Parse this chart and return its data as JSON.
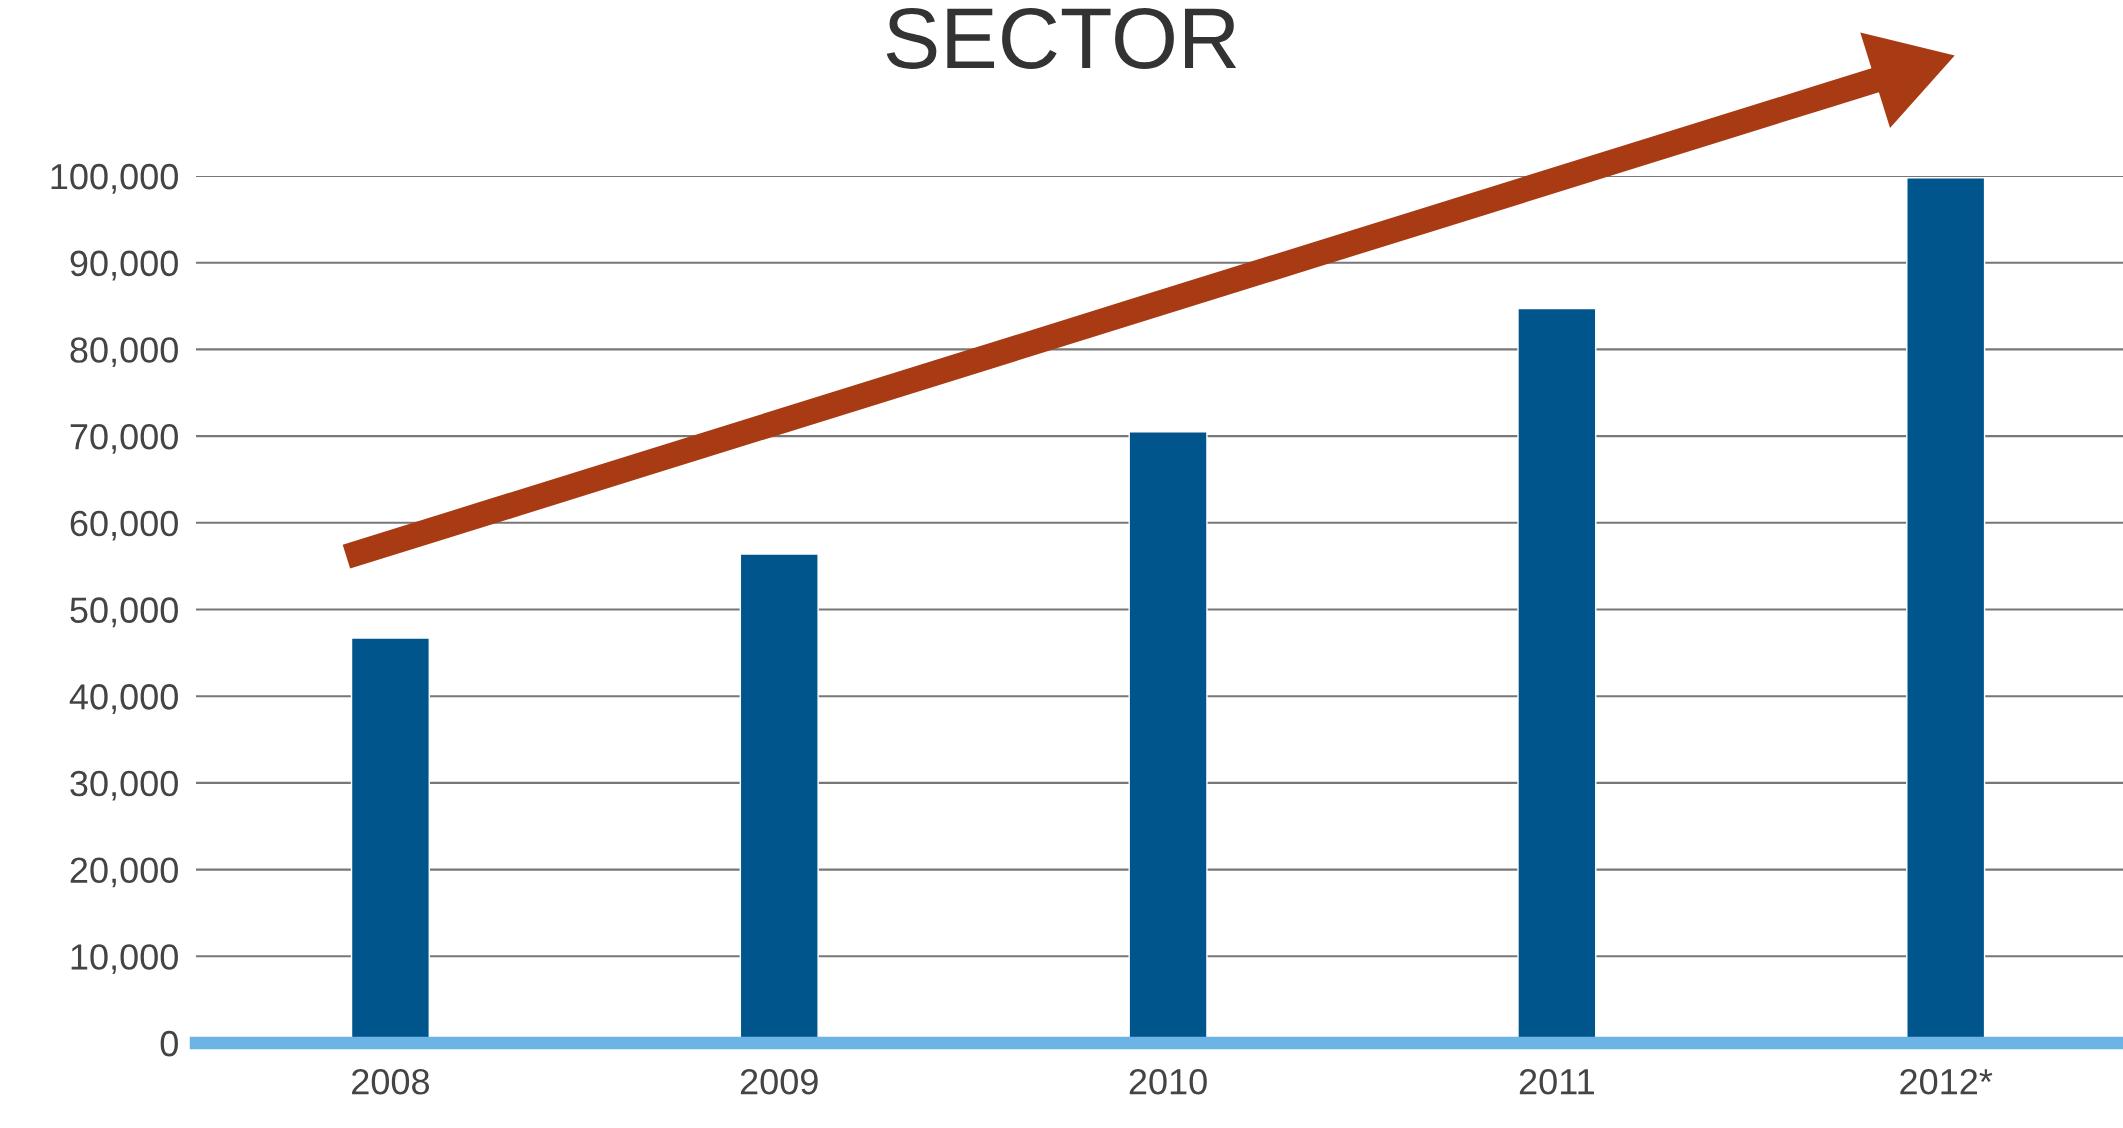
{
  "chart_data": {
    "type": "bar",
    "title": "SECTOR",
    "categories": [
      "2008",
      "2009",
      "2010",
      "2011",
      "2012*"
    ],
    "values": [
      46700,
      56400,
      70500,
      84700,
      99800
    ],
    "color": "#00558c",
    "ylim": [
      0,
      100000
    ],
    "yticks": [
      {
        "value": 0,
        "label": "0"
      },
      {
        "value": 10000,
        "label": "10,000"
      },
      {
        "value": 20000,
        "label": "20,000"
      },
      {
        "value": 30000,
        "label": "30,000"
      },
      {
        "value": 40000,
        "label": "40,000"
      },
      {
        "value": 50000,
        "label": "50,000"
      },
      {
        "value": 60000,
        "label": "60,000"
      },
      {
        "value": 70000,
        "label": "70,000"
      },
      {
        "value": 80000,
        "label": "80,000"
      },
      {
        "value": 90000,
        "label": "90,000"
      },
      {
        "value": 100000,
        "label": "100,000"
      }
    ],
    "grid": "y"
  }
}
